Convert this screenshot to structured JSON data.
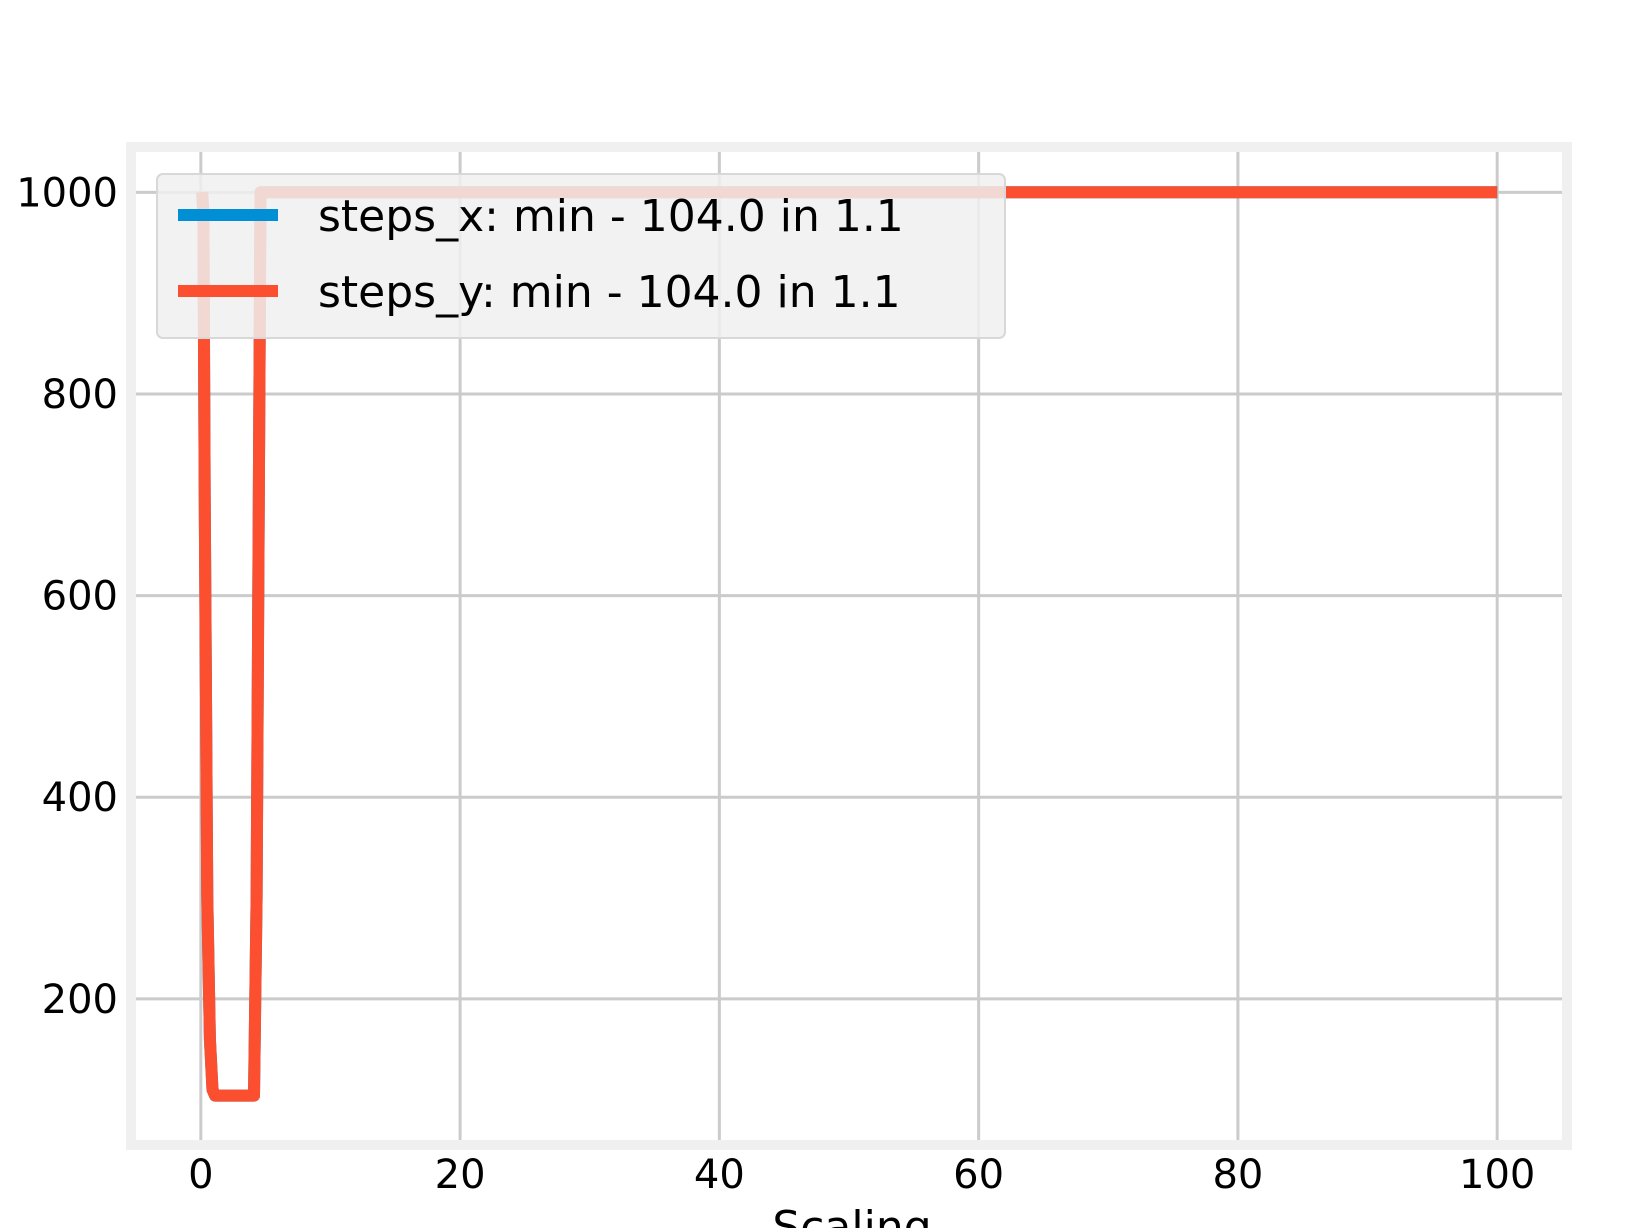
{
  "chart_data": {
    "type": "line",
    "title": "",
    "xlabel": "Scaling",
    "ylabel": "",
    "xlim": [
      -5,
      105
    ],
    "ylim": [
      60,
      1040
    ],
    "xticks": [
      0,
      20,
      40,
      60,
      80,
      100
    ],
    "yticks": [
      200,
      400,
      600,
      800,
      1000
    ],
    "xtick_labels": [
      "0",
      "20",
      "40",
      "60",
      "80",
      "100"
    ],
    "ytick_labels": [
      "200",
      "400",
      "600",
      "800",
      "1000"
    ],
    "grid": true,
    "legend_position": "upper-left",
    "series": [
      {
        "name": "steps_x: min - 104.0 in 1.1",
        "color": "#008fd5",
        "x": [
          0.1,
          0.2,
          0.3,
          0.5,
          0.7,
          0.9,
          1.1,
          2,
          3,
          4.1,
          4.3,
          4.6,
          5,
          20,
          40,
          60,
          80,
          100
        ],
        "y": [
          1000,
          980,
          700,
          300,
          160,
          110,
          104,
          104,
          104,
          104,
          300,
          1000,
          1000,
          1000,
          1000,
          1000,
          1000,
          1000
        ]
      },
      {
        "name": "steps_y: min - 104.0 in 1.1",
        "color": "#fc4f30",
        "x": [
          0.1,
          0.2,
          0.3,
          0.5,
          0.7,
          0.9,
          1.1,
          2,
          3,
          4.1,
          4.3,
          4.6,
          5,
          20,
          40,
          60,
          80,
          100
        ],
        "y": [
          1000,
          980,
          700,
          300,
          160,
          110,
          104,
          104,
          104,
          104,
          300,
          1000,
          1000,
          1000,
          1000,
          1000,
          1000,
          1000
        ]
      }
    ]
  }
}
